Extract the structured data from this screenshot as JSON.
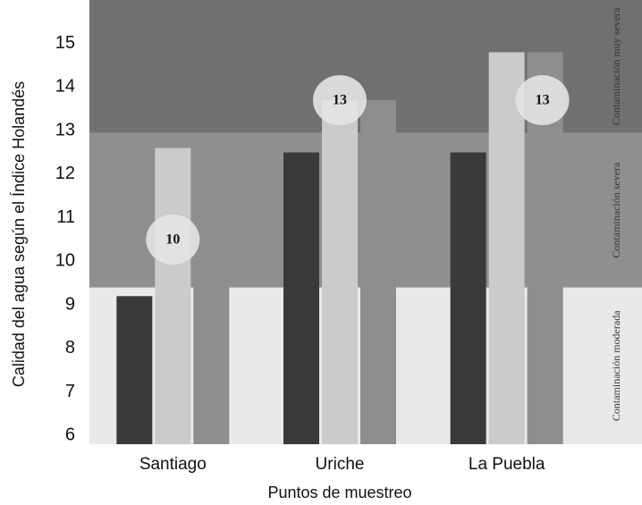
{
  "chart_data": {
    "type": "bar",
    "x_label": "Puntos de muestreo",
    "y_label": "Calidad del agua según el Índice Holandés",
    "categories": [
      "Santiago",
      "Uriche",
      "La Puebla"
    ],
    "series": [
      {
        "color": "#3a3a3a",
        "values": [
          9.2,
          12.5,
          12.5
        ]
      },
      {
        "color": "#cbcbcb",
        "values": [
          12.6,
          13.7,
          14.8
        ]
      },
      {
        "color": "#8e8e8e",
        "values": [
          10.3,
          13.7,
          14.8
        ]
      }
    ],
    "ylim": [
      5.8,
      16
    ],
    "yticks": [
      6,
      7,
      8,
      9,
      10,
      11,
      12,
      13,
      14,
      15
    ],
    "zones": [
      {
        "label": "Contaminación moderada",
        "from": 5.8,
        "to": 9.4,
        "color": "#e9e9e9"
      },
      {
        "label": "Contaminación severa",
        "from": 9.4,
        "to": 12.95,
        "color": "#8f8f8f"
      },
      {
        "label": "Contaminación muy severa",
        "from": 12.95,
        "to": 16,
        "color": "#707070"
      }
    ],
    "annotations": [
      {
        "text": "10",
        "category": 0,
        "y": 10.5
      },
      {
        "text": "13",
        "category": 1,
        "y": 13.7
      },
      {
        "text": "13",
        "category": 2,
        "y": 13.7
      }
    ]
  }
}
